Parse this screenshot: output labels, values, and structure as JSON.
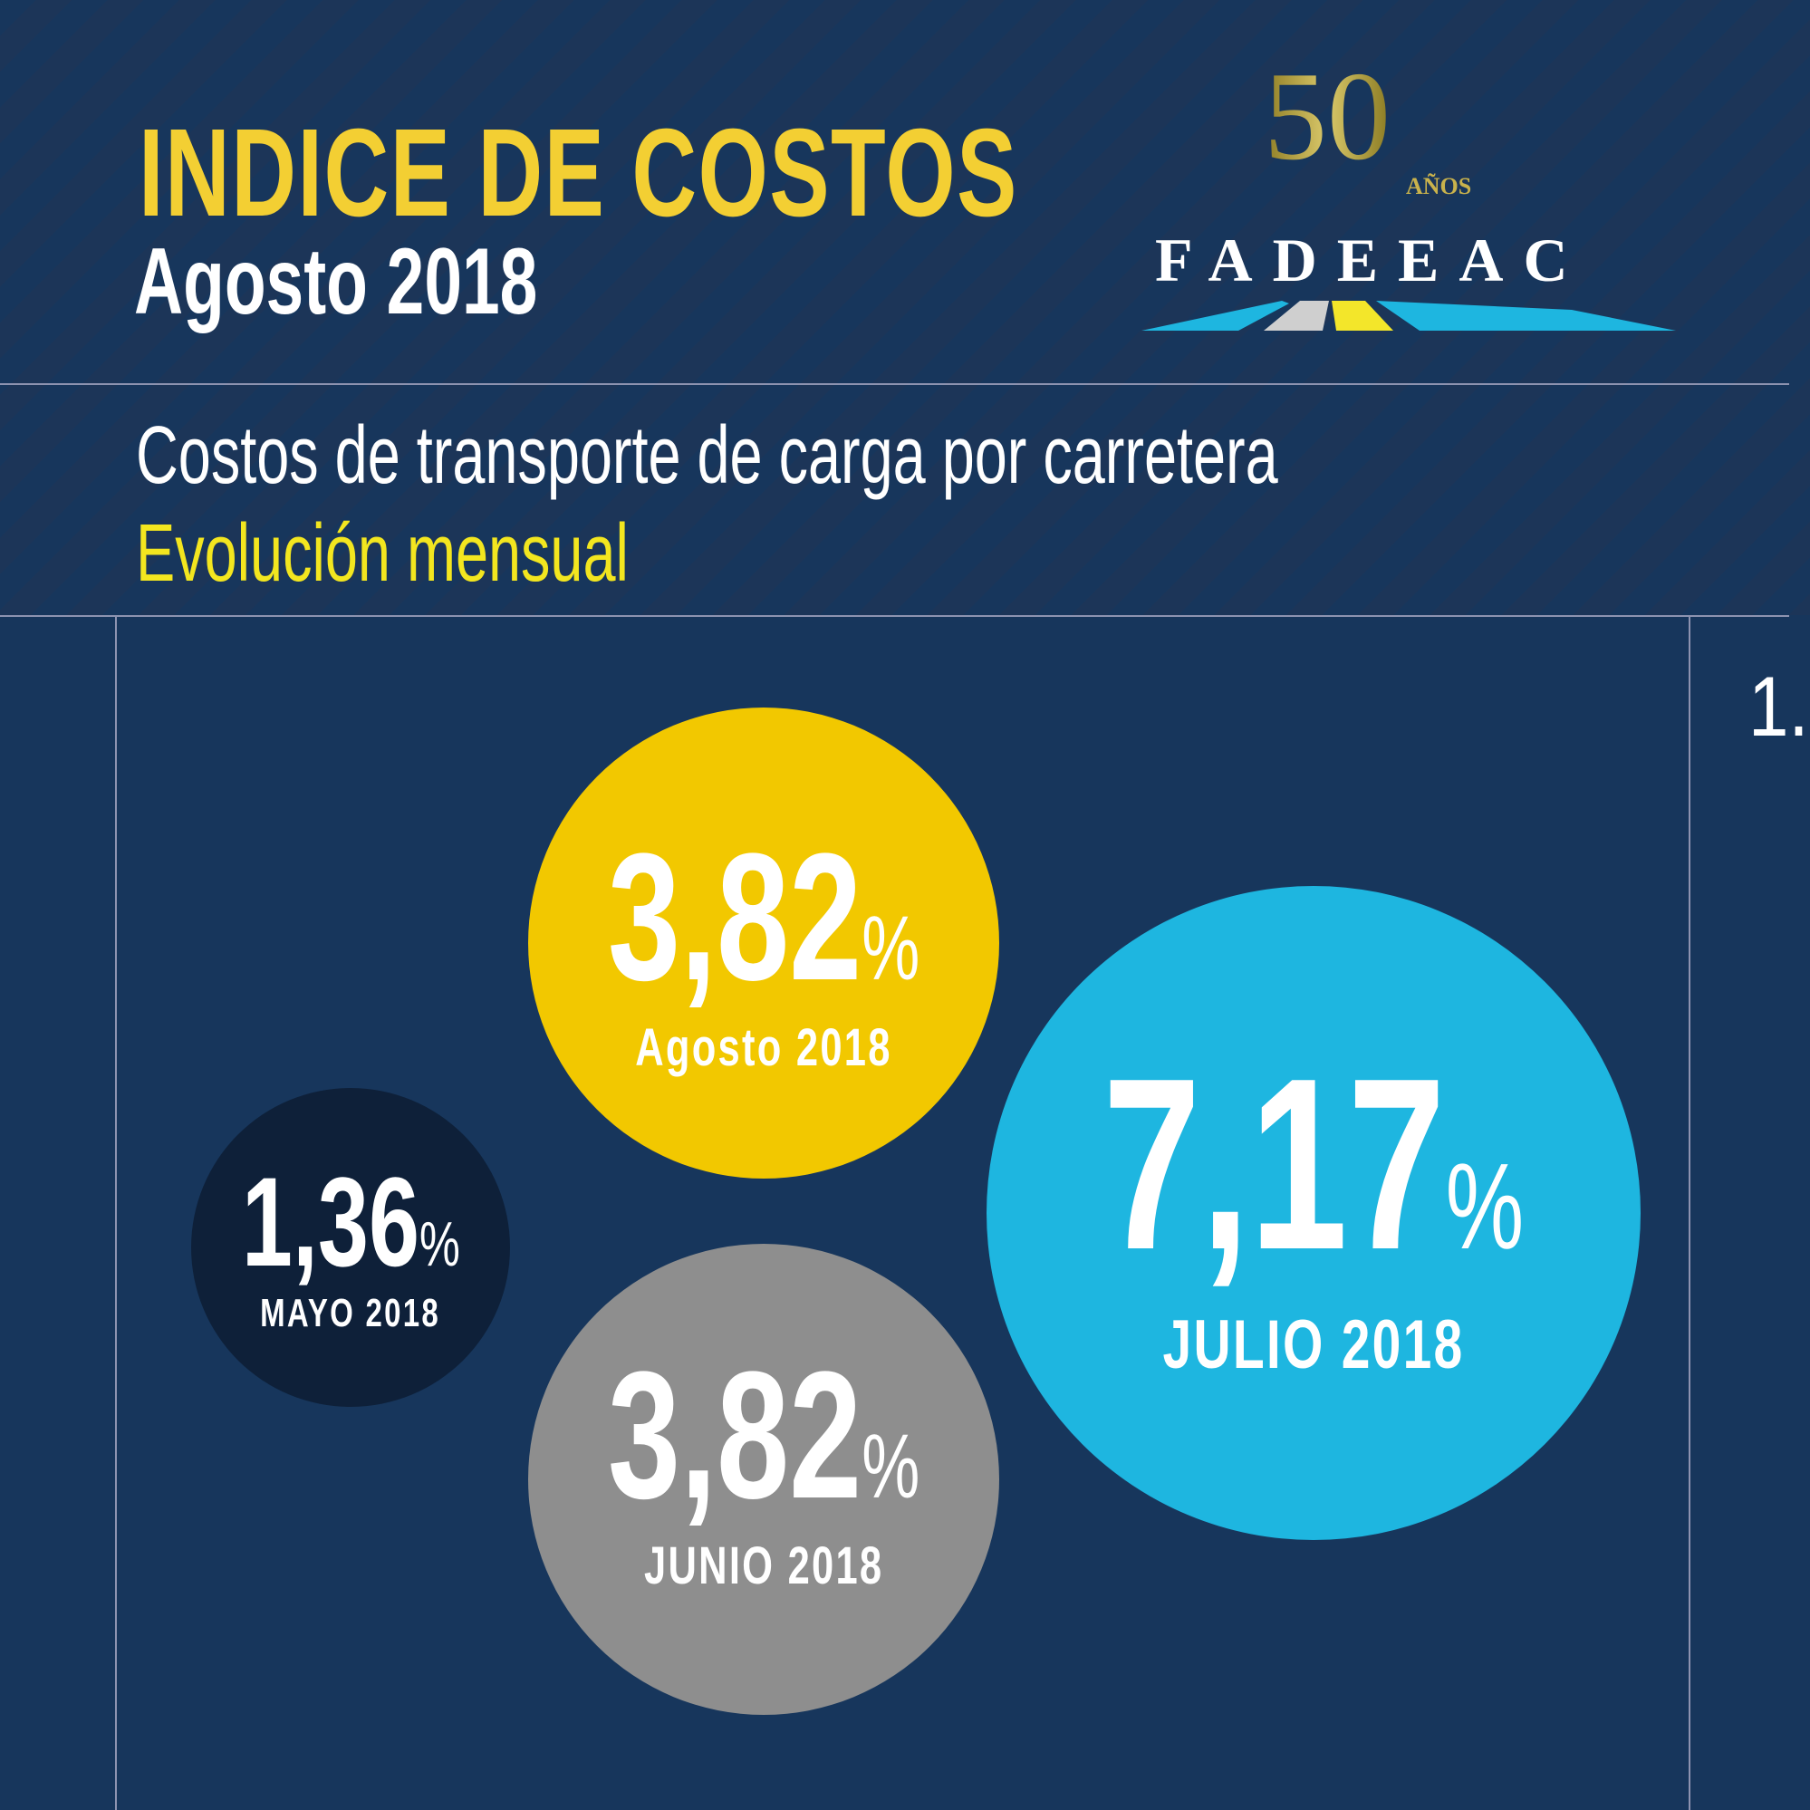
{
  "header": {
    "title": "INDICE DE COSTOS",
    "subtitle": "Agosto 2018",
    "line1": "Costos de transporte de carga por carretera",
    "line2": "Evolución mensual"
  },
  "logo": {
    "anniversary": "50",
    "anniversary_label": "AÑOS",
    "name": "FADEEAC"
  },
  "page_marker": "1.",
  "colors": {
    "background": "#17365c",
    "accent_yellow": "#f3cf33",
    "agosto": "#f2c800",
    "julio": "#1eb6e0",
    "mayo": "#0e2039",
    "junio": "#8e8e8e"
  },
  "items": [
    {
      "value": "3,82",
      "unit": "%",
      "label": "Agosto 2018"
    },
    {
      "value": "7,17",
      "unit": "%",
      "label": "JULIO 2018"
    },
    {
      "value": "1,36",
      "unit": "%",
      "label": "MAYO 2018"
    },
    {
      "value": "3,82",
      "unit": "%",
      "label": "JUNIO 2018"
    }
  ]
}
